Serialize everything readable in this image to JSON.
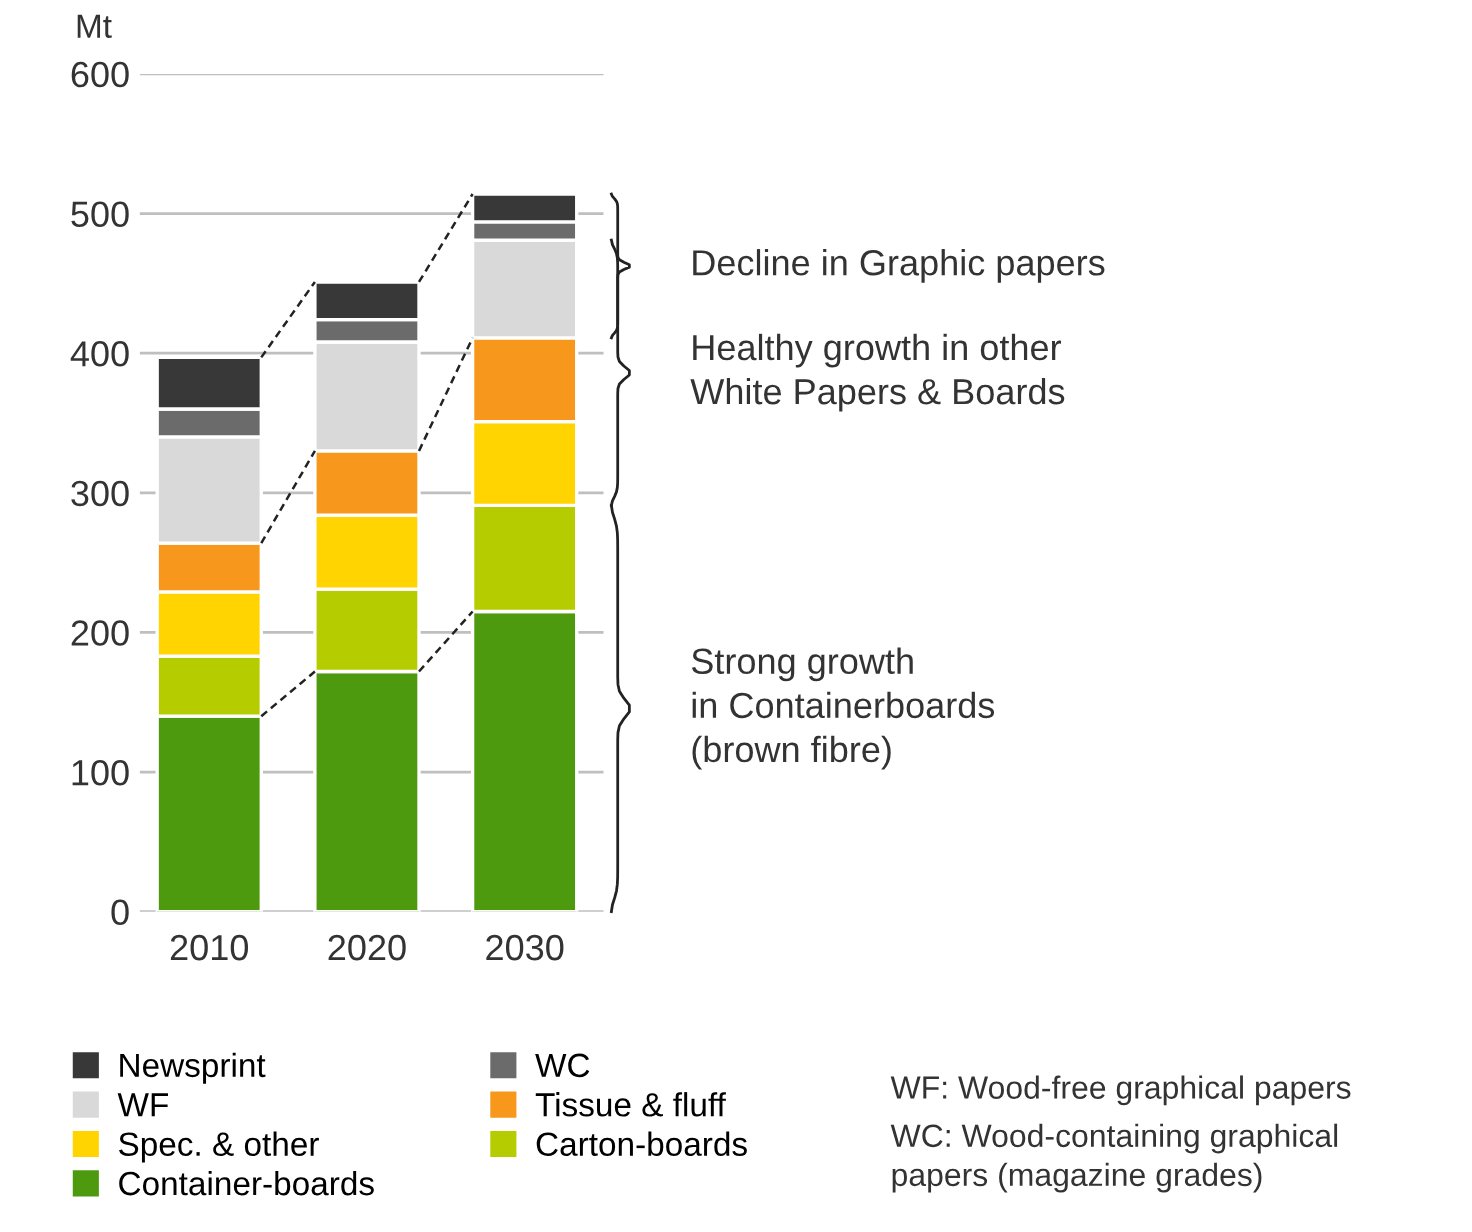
{
  "chart_data": {
    "type": "bar",
    "stacked": true,
    "ylabel": "Mt",
    "categories": [
      "2010",
      "2020",
      "2030"
    ],
    "series": [
      {
        "name": "Container-boards",
        "color": "#4e9a0f",
        "values": [
          140,
          172,
          215
        ]
      },
      {
        "name": "Carton-boards",
        "color": "#b5cc00",
        "values": [
          43,
          59,
          76
        ]
      },
      {
        "name": "Spec. & other",
        "color": "#ffd400",
        "values": [
          46,
          53,
          60
        ]
      },
      {
        "name": "Tissue & fluff",
        "color": "#f7981d",
        "values": [
          35,
          46,
          60
        ]
      },
      {
        "name": "WF",
        "color": "#d9d9d9",
        "values": [
          76,
          78,
          70
        ]
      },
      {
        "name": "WC",
        "color": "#6b6b6b",
        "values": [
          20,
          16,
          13
        ]
      },
      {
        "name": "Newsprint",
        "color": "#383838",
        "values": [
          37,
          27,
          20
        ]
      }
    ],
    "ylim": [
      0,
      600
    ],
    "yticks": [
      0,
      100,
      200,
      300,
      400,
      500,
      600
    ],
    "grid": "y",
    "legend": "bottom",
    "annotations": [
      "Strong growth\nin Containerboards\n(brown fibre)",
      "Healthy growth in other\nWhite Papers & Boards",
      "Decline in Graphic papers",
      "WF: Wood-free graphical papers",
      "WC: Wood-containing graphical\npapers (magazine grades)"
    ]
  }
}
